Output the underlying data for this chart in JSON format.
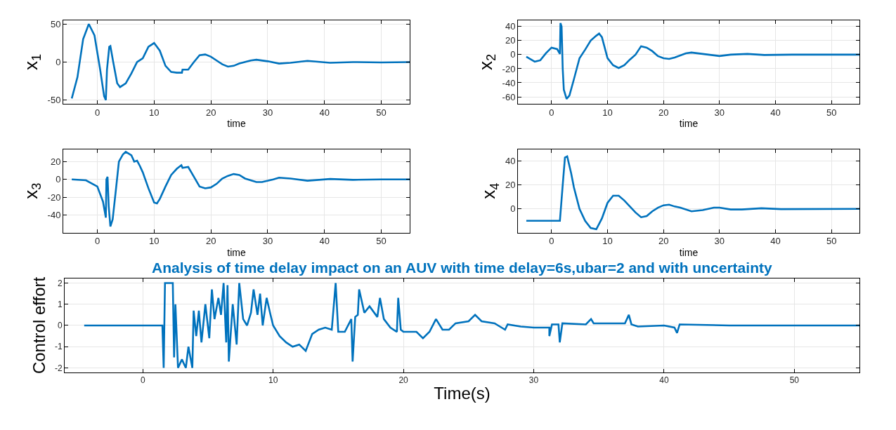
{
  "chart_data": [
    {
      "type": "line",
      "xlabel": "time",
      "ylabel": "x$_{1}$",
      "xlim": [
        -6,
        55
      ],
      "xticks": [
        0,
        10,
        20,
        30,
        40,
        50
      ],
      "ylim": [
        -55,
        55
      ],
      "yticks": [
        -50,
        0,
        50
      ],
      "grid": true,
      "series": [
        {
          "color": "#0072bd",
          "x": [
            -4.5,
            -3.5,
            -2.5,
            -1.5,
            -0.5,
            0.5,
            1.2,
            1.5,
            1.7,
            2.1,
            2.3,
            2.8,
            3.5,
            4,
            5,
            6,
            7,
            8,
            9,
            10,
            11,
            12,
            13,
            14,
            14.9,
            15,
            16,
            17,
            18,
            19,
            20,
            21,
            22,
            23,
            24,
            25,
            27,
            28,
            30,
            32,
            34,
            37,
            41,
            45,
            50,
            55
          ],
          "values": [
            -48,
            -20,
            30,
            50,
            35,
            -10,
            -45,
            -50,
            -10,
            20,
            21,
            0,
            -28,
            -33,
            -28,
            -15,
            0,
            5,
            20,
            25,
            15,
            -5,
            -13,
            -14,
            -14,
            -10,
            -10,
            0,
            9,
            10,
            7,
            2,
            -3,
            -6,
            -5,
            -2,
            2,
            3,
            1,
            -2,
            -1,
            1.5,
            -1,
            0,
            -0.5,
            0
          ]
        }
      ]
    },
    {
      "type": "line",
      "xlabel": "time",
      "ylabel": "x$_{2}$",
      "xlim": [
        -6,
        55
      ],
      "xticks": [
        0,
        10,
        20,
        30,
        40,
        50
      ],
      "ylim": [
        -70,
        49
      ],
      "yticks": [
        -60,
        -40,
        -20,
        0,
        20,
        40
      ],
      "grid": true,
      "series": [
        {
          "color": "#0072bd",
          "x": [
            -4.5,
            -3,
            -2,
            -1,
            0,
            1,
            1.5,
            1.6,
            1.8,
            2,
            2.2,
            2.7,
            3.2,
            4,
            5,
            6,
            7,
            8,
            8.5,
            9,
            10,
            11,
            12,
            13,
            14,
            15,
            16,
            17,
            18,
            19,
            20,
            21,
            22,
            24,
            25,
            27,
            30,
            32,
            35,
            38,
            43,
            55
          ],
          "values": [
            -3,
            -10,
            -8,
            2,
            10,
            8,
            1,
            45,
            40,
            -20,
            -50,
            -63,
            -58,
            -35,
            -5,
            7,
            20,
            27,
            30,
            25,
            -5,
            -15,
            -19,
            -15,
            -7,
            0,
            12,
            10,
            5,
            -2,
            -5,
            -6,
            -4,
            2,
            3,
            1,
            -2,
            0,
            1,
            -0.5,
            0,
            0
          ]
        }
      ]
    },
    {
      "type": "line",
      "xlabel": "time",
      "ylabel": "x$_{3}$",
      "xlim": [
        -6,
        55
      ],
      "xticks": [
        0,
        10,
        20,
        30,
        40,
        50
      ],
      "ylim": [
        -60,
        34
      ],
      "yticks": [
        -40,
        -20,
        0,
        20
      ],
      "grid": true,
      "series": [
        {
          "color": "#0072bd",
          "x": [
            -4.5,
            -2,
            0,
            1,
            1.5,
            1.6,
            1.8,
            2,
            2.3,
            2.7,
            3.3,
            3.8,
            4.5,
            5,
            5.5,
            6,
            6.5,
            7,
            7.5,
            8,
            9,
            10,
            10.5,
            11,
            12,
            13,
            14,
            14.8,
            15,
            16,
            17,
            18,
            19,
            20,
            21,
            22,
            23,
            24,
            25,
            26,
            28,
            29,
            31,
            32,
            34,
            37,
            41,
            45,
            50,
            55
          ],
          "values": [
            0,
            -1,
            -8,
            -25,
            -43,
            0,
            3,
            -30,
            -53,
            -45,
            -10,
            20,
            28,
            31,
            29,
            27,
            20,
            21,
            15,
            8,
            -10,
            -26,
            -27,
            -22,
            -8,
            5,
            12,
            16,
            13,
            14,
            3,
            -8,
            -10,
            -9,
            -5,
            1,
            4,
            6,
            5,
            1,
            -3,
            -3,
            0,
            2,
            1,
            -1.5,
            0.5,
            -0.5,
            0,
            0
          ]
        }
      ]
    },
    {
      "type": "line",
      "xlabel": "time",
      "ylabel": "x$_{4}$",
      "xlim": [
        -6,
        55
      ],
      "xticks": [
        0,
        10,
        20,
        30,
        40,
        50
      ],
      "ylim": [
        -20,
        50
      ],
      "yticks": [
        0,
        20,
        40
      ],
      "grid": true,
      "series": [
        {
          "color": "#0072bd",
          "x": [
            -4.5,
            1.5,
            2,
            2.4,
            2.8,
            3.5,
            4,
            5,
            6,
            7,
            8,
            9,
            10,
            11,
            12,
            13,
            14,
            15,
            16,
            17,
            18,
            19,
            20,
            21,
            22,
            23,
            25,
            27,
            29,
            30,
            32,
            34,
            37.5,
            41,
            55
          ],
          "values": [
            -10,
            -10,
            20,
            43,
            44,
            30,
            18,
            0,
            -10,
            -16,
            -17,
            -8,
            5,
            11,
            11,
            7,
            2,
            -3,
            -7,
            -6,
            -2,
            1,
            3,
            3.5,
            2,
            1,
            -2,
            -1,
            1,
            1,
            -0.5,
            -0.5,
            0.5,
            -0.2,
            0
          ]
        }
      ]
    },
    {
      "type": "line",
      "title": "Analysis of time delay impact on an AUV with time delay=6s,ubar=2 and with uncertainty",
      "xlabel": "Time(s)",
      "ylabel": "Control effort",
      "xlim": [
        -6,
        55
      ],
      "xticks": [
        0,
        10,
        20,
        30,
        40,
        50
      ],
      "ylim": [
        -2.2,
        2.2
      ],
      "yticks": [
        -2,
        -1,
        0,
        1,
        2
      ],
      "grid": true,
      "series": [
        {
          "color": "#0072bd",
          "x": [
            -4.5,
            1.5,
            1.6,
            1.7,
            2.3,
            2.4,
            2.5,
            2.7,
            3,
            3.3,
            3.5,
            3.8,
            3.9,
            4.1,
            4.3,
            4.5,
            4.8,
            5.1,
            5.3,
            5.5,
            5.8,
            6,
            6.2,
            6.4,
            6.5,
            6.6,
            6.9,
            7.2,
            7.4,
            7.7,
            8,
            8.3,
            8.5,
            8.8,
            9,
            9.2,
            9.5,
            9.8,
            10,
            10.5,
            11,
            11.5,
            12,
            12.5,
            13,
            13.5,
            14,
            14.5,
            14.8,
            15,
            15.5,
            16,
            16.1,
            16.3,
            16.5,
            16.6,
            17,
            17.4,
            18,
            18.2,
            18.5,
            19,
            19.5,
            19.6,
            19.8,
            20,
            21,
            21.5,
            22,
            22.5,
            23,
            23.5,
            24,
            25,
            25.5,
            26,
            27,
            27.8,
            28,
            29,
            30,
            31.2,
            31.2,
            31.4,
            31.9,
            32,
            32.2,
            34,
            34.4,
            34.6,
            37,
            37.3,
            37.5,
            38,
            40,
            40.8,
            41,
            41.2,
            45,
            55
          ],
          "values": [
            0,
            0,
            -2,
            2,
            2,
            -1.5,
            1,
            -2,
            -1.6,
            -2,
            -1,
            -2,
            0.7,
            -0.5,
            0.7,
            -0.8,
            1,
            -0.6,
            1.7,
            0.3,
            1.3,
            0.5,
            2,
            -0.8,
            1.9,
            -1.7,
            1,
            -0.9,
            2,
            0.3,
            0,
            0.6,
            1.7,
            0.5,
            1.5,
            0,
            1.3,
            0.5,
            0,
            -0.5,
            -0.8,
            -1,
            -0.9,
            -1.2,
            -0.4,
            -0.2,
            -0.1,
            -0.2,
            2,
            -0.3,
            -0.3,
            0.3,
            -1.7,
            0.4,
            0.5,
            1.7,
            0.6,
            0.9,
            0.4,
            1.3,
            0.3,
            -0.1,
            -0.3,
            1.3,
            -0.2,
            -0.3,
            -0.3,
            -0.6,
            -0.3,
            0.3,
            -0.2,
            -0.2,
            0.1,
            0.2,
            0.5,
            0.2,
            0.1,
            -0.2,
            0.05,
            -0.05,
            -0.1,
            -0.1,
            -0.5,
            0.05,
            0.05,
            -0.8,
            0.1,
            0.05,
            0.3,
            0.1,
            0.1,
            0.5,
            0.05,
            -0.05,
            0,
            -0.1,
            -0.35,
            0.05,
            0,
            0
          ]
        }
      ]
    }
  ]
}
